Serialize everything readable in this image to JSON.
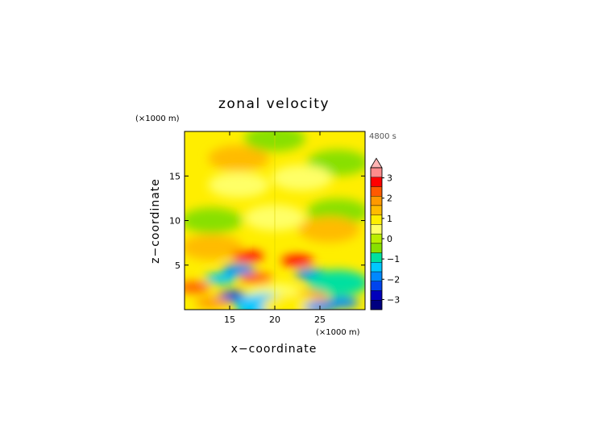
{
  "chart_data": {
    "type": "heatmap",
    "title": "zonal velocity",
    "xlabel": "x−coordinate",
    "ylabel": "z−coordinate",
    "x_unit_label": "(×1000 m)",
    "y_unit_label": "(×1000 m)",
    "time_label": "4800 s",
    "xlim": [
      10,
      30
    ],
    "ylim": [
      0,
      20
    ],
    "x_ticks": [
      15,
      20,
      25
    ],
    "x_tick_labels": [
      "15",
      "20",
      "25"
    ],
    "y_ticks": [
      5,
      10,
      15
    ],
    "y_tick_labels": [
      "5",
      "10",
      "15"
    ],
    "colorbar": {
      "ticks": [
        3,
        2,
        1,
        0,
        -1,
        -2,
        -3
      ],
      "tick_labels": [
        "3",
        "2",
        "1",
        "0",
        "−1",
        "−2",
        "−3"
      ],
      "levels": [
        3.5,
        3.0,
        2.5,
        2.0,
        1.5,
        1.0,
        0.5,
        0.0,
        -0.5,
        -1.0,
        -1.5,
        -2.0,
        -2.5,
        -3.0,
        -3.5
      ],
      "colors": [
        "#ffb4b4",
        "#ff8c8c",
        "#ff0000",
        "#ff5a00",
        "#ff9900",
        "#ffbb00",
        "#ffee00",
        "#ffff66",
        "#bbee00",
        "#88e000",
        "#00e0a0",
        "#00c8ff",
        "#0088ff",
        "#0044ee",
        "#0000bb",
        "#000080"
      ],
      "extend": "max"
    },
    "features": [
      {
        "x": 16,
        "z": 17,
        "value": 1.2
      },
      {
        "x": 27,
        "z": 16.5,
        "value": -0.9
      },
      {
        "x": 20,
        "z": 19.2,
        "value": -0.9
      },
      {
        "x": 23,
        "z": 14.8,
        "value": 0.4
      },
      {
        "x": 16,
        "z": 14,
        "value": 0.4
      },
      {
        "x": 13,
        "z": 10,
        "value": -0.6
      },
      {
        "x": 27,
        "z": 11,
        "value": -0.6
      },
      {
        "x": 20,
        "z": 10.3,
        "value": 0.4
      },
      {
        "x": 26,
        "z": 9,
        "value": 1.2
      },
      {
        "x": 13,
        "z": 7,
        "value": 1.1
      },
      {
        "x": 17,
        "z": 6,
        "value": 2.6
      },
      {
        "x": 22.5,
        "z": 5.5,
        "value": 2.8
      },
      {
        "x": 16,
        "z": 4.5,
        "value": -2.3
      },
      {
        "x": 24,
        "z": 4,
        "value": -2.0
      },
      {
        "x": 18,
        "z": 3.5,
        "value": 2.2
      },
      {
        "x": 14,
        "z": 3.5,
        "value": -1.6
      },
      {
        "x": 27,
        "z": 3,
        "value": -1.3
      },
      {
        "x": 11,
        "z": 2.5,
        "value": 2.2
      },
      {
        "x": 15.5,
        "z": 1.5,
        "value": -2.5
      },
      {
        "x": 20,
        "z": 1.5,
        "value": 0.2
      },
      {
        "x": 24,
        "z": 1.5,
        "value": 1.7
      },
      {
        "x": 13,
        "z": 0.8,
        "value": 2.0
      },
      {
        "x": 27.5,
        "z": 0.8,
        "value": -2.0
      },
      {
        "x": 19,
        "z": 0.4,
        "value": -1.5
      },
      {
        "x": 22,
        "z": 0.3,
        "value": 1.0
      },
      {
        "x": 25,
        "z": 0.3,
        "value": -2.2
      }
    ]
  }
}
